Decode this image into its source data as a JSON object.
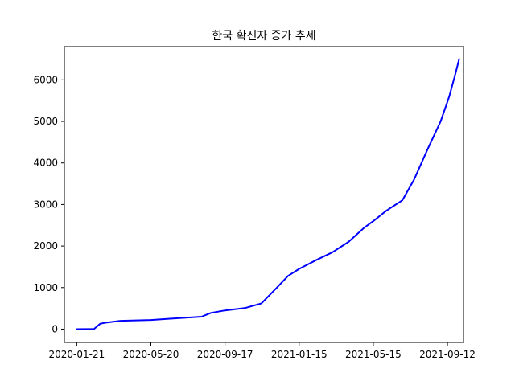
{
  "chart_data": {
    "type": "line",
    "title": "한국 확진자 증가 추세",
    "xlabel": "",
    "ylabel": "",
    "x_tick_labels": [
      "2020-01-21",
      "2020-05-20",
      "2020-09-17",
      "2021-01-15",
      "2021-05-15",
      "2021-09-12"
    ],
    "y_ticks": [
      0,
      1000,
      2000,
      3000,
      4000,
      5000,
      6000
    ],
    "xlim": [
      "2020-01-01",
      "2021-10-08"
    ],
    "ylim": [
      -320,
      6800
    ],
    "grid": false,
    "series": [
      {
        "color": "#0000ff",
        "x": [
          "2020-01-21",
          "2020-02-18",
          "2020-02-28",
          "2020-03-10",
          "2020-04-01",
          "2020-05-20",
          "2020-06-20",
          "2020-08-10",
          "2020-08-25",
          "2020-09-17",
          "2020-10-20",
          "2020-11-15",
          "2020-12-10",
          "2020-12-28",
          "2021-01-15",
          "2021-02-10",
          "2021-03-10",
          "2021-04-05",
          "2021-05-01",
          "2021-05-15",
          "2021-06-05",
          "2021-07-01",
          "2021-07-20",
          "2021-08-10",
          "2021-09-01",
          "2021-09-15",
          "2021-09-25",
          "2021-10-01"
        ],
        "y": [
          0,
          5,
          130,
          160,
          200,
          220,
          250,
          300,
          390,
          450,
          510,
          620,
          1000,
          1280,
          1450,
          1650,
          1850,
          2100,
          2450,
          2600,
          2850,
          3100,
          3600,
          4300,
          5000,
          5600,
          6150,
          6500
        ]
      }
    ]
  }
}
